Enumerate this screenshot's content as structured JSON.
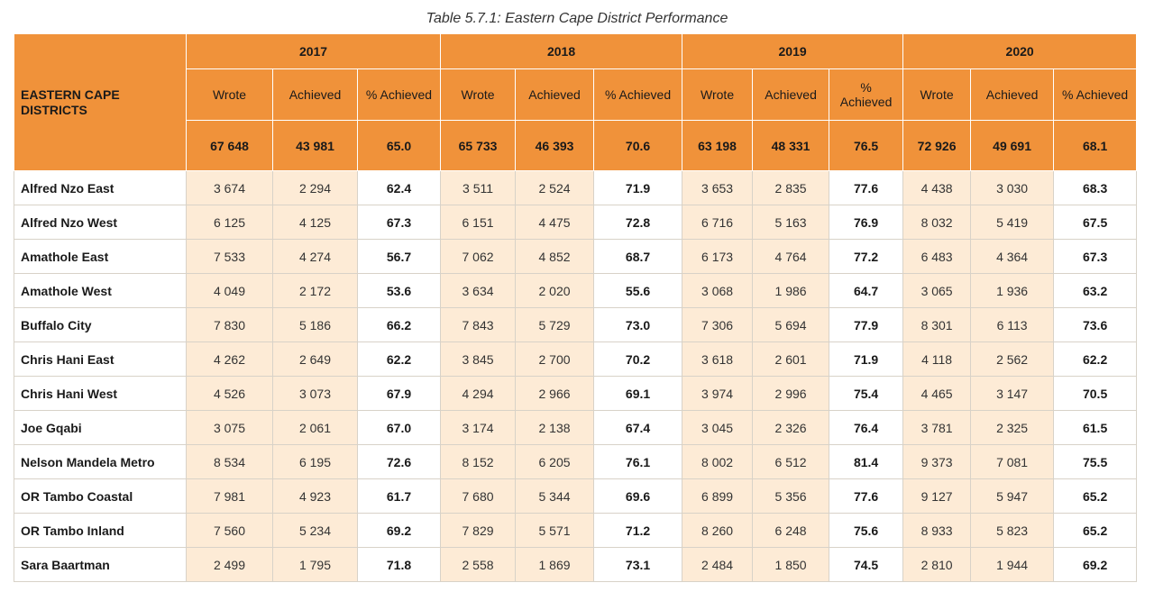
{
  "caption": "Table 5.7.1: Eastern Cape District Performance",
  "header": {
    "district_label": "EASTERN CAPE DISTRICTS",
    "years": [
      "2017",
      "2018",
      "2019",
      "2020"
    ],
    "sub": {
      "wrote": "Wrote",
      "achieved": "Achieved",
      "pct": "% Achieved"
    },
    "totals": [
      [
        "67 648",
        "43 981",
        "65.0"
      ],
      [
        "65 733",
        "46 393",
        "70.6"
      ],
      [
        "63 198",
        "48 331",
        "76.5"
      ],
      [
        "72 926",
        "49 691",
        "68.1"
      ]
    ]
  },
  "rows": [
    {
      "name": "Alfred Nzo East",
      "vals": [
        [
          "3 674",
          "2 294",
          "62.4"
        ],
        [
          "3 511",
          "2 524",
          "71.9"
        ],
        [
          "3 653",
          "2 835",
          "77.6"
        ],
        [
          "4 438",
          "3 030",
          "68.3"
        ]
      ]
    },
    {
      "name": "Alfred Nzo West",
      "vals": [
        [
          "6 125",
          "4 125",
          "67.3"
        ],
        [
          "6 151",
          "4 475",
          "72.8"
        ],
        [
          "6 716",
          "5 163",
          "76.9"
        ],
        [
          "8 032",
          "5 419",
          "67.5"
        ]
      ]
    },
    {
      "name": "Amathole East",
      "vals": [
        [
          "7 533",
          "4 274",
          "56.7"
        ],
        [
          "7 062",
          "4 852",
          "68.7"
        ],
        [
          "6 173",
          "4 764",
          "77.2"
        ],
        [
          "6 483",
          "4 364",
          "67.3"
        ]
      ]
    },
    {
      "name": "Amathole West",
      "vals": [
        [
          "4 049",
          "2 172",
          "53.6"
        ],
        [
          "3 634",
          "2 020",
          "55.6"
        ],
        [
          "3 068",
          "1 986",
          "64.7"
        ],
        [
          "3 065",
          "1 936",
          "63.2"
        ]
      ]
    },
    {
      "name": "Buffalo City",
      "vals": [
        [
          "7 830",
          "5 186",
          "66.2"
        ],
        [
          "7 843",
          "5 729",
          "73.0"
        ],
        [
          "7 306",
          "5 694",
          "77.9"
        ],
        [
          "8 301",
          "6 113",
          "73.6"
        ]
      ]
    },
    {
      "name": "Chris Hani East",
      "vals": [
        [
          "4 262",
          "2 649",
          "62.2"
        ],
        [
          "3 845",
          "2 700",
          "70.2"
        ],
        [
          "3 618",
          "2 601",
          "71.9"
        ],
        [
          "4 118",
          "2 562",
          "62.2"
        ]
      ]
    },
    {
      "name": "Chris Hani West",
      "vals": [
        [
          "4 526",
          "3 073",
          "67.9"
        ],
        [
          "4 294",
          "2 966",
          "69.1"
        ],
        [
          "3 974",
          "2 996",
          "75.4"
        ],
        [
          "4 465",
          "3 147",
          "70.5"
        ]
      ]
    },
    {
      "name": "Joe Gqabi",
      "vals": [
        [
          "3 075",
          "2 061",
          "67.0"
        ],
        [
          "3 174",
          "2 138",
          "67.4"
        ],
        [
          "3 045",
          "2 326",
          "76.4"
        ],
        [
          "3 781",
          "2 325",
          "61.5"
        ]
      ]
    },
    {
      "name": "Nelson Mandela Metro",
      "vals": [
        [
          "8 534",
          "6 195",
          "72.6"
        ],
        [
          "8 152",
          "6 205",
          "76.1"
        ],
        [
          "8 002",
          "6 512",
          "81.4"
        ],
        [
          "9 373",
          "7 081",
          "75.5"
        ]
      ]
    },
    {
      "name": "OR Tambo Coastal",
      "vals": [
        [
          "7 981",
          "4 923",
          "61.7"
        ],
        [
          "7 680",
          "5 344",
          "69.6"
        ],
        [
          "6 899",
          "5 356",
          "77.6"
        ],
        [
          "9 127",
          "5 947",
          "65.2"
        ]
      ]
    },
    {
      "name": "OR Tambo Inland",
      "vals": [
        [
          "7 560",
          "5 234",
          "69.2"
        ],
        [
          "7 829",
          "5 571",
          "71.2"
        ],
        [
          "8 260",
          "6 248",
          "75.6"
        ],
        [
          "8 933",
          "5 823",
          "65.2"
        ]
      ]
    },
    {
      "name": "Sara Baartman",
      "vals": [
        [
          "2 499",
          "1 795",
          "71.8"
        ],
        [
          "2 558",
          "1 869",
          "73.1"
        ],
        [
          "2 484",
          "1 850",
          "74.5"
        ],
        [
          "2 810",
          "1 944",
          "69.2"
        ]
      ]
    }
  ]
}
